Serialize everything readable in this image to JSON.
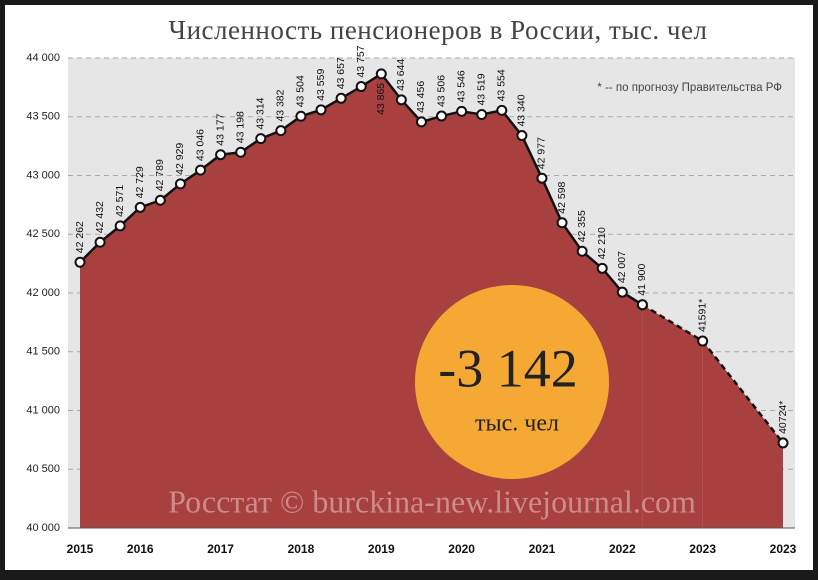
{
  "chart_data": {
    "type": "area-line",
    "title": "Численность пенсионеров в России, тыс. чел",
    "annotation": "* -- по прогнозу Правительства РФ",
    "highlight": {
      "value_label": "-3 142",
      "unit": "тыс. чел"
    },
    "watermark": "Росстат © burckina-new.livejournal.com",
    "categories": [
      "2015",
      null,
      null,
      "2016",
      null,
      null,
      null,
      "2017",
      null,
      null,
      null,
      "2018",
      null,
      null,
      null,
      "2019",
      null,
      null,
      null,
      "2020",
      null,
      null,
      null,
      "2021",
      null,
      null,
      null,
      "2022",
      null,
      null,
      null,
      "2023",
      null,
      null,
      null,
      "2023"
    ],
    "series": [
      {
        "color": "#a8403f",
        "values": [
          42262,
          42432,
          42571,
          42729,
          42789,
          42929,
          43046,
          43177,
          43198,
          43314,
          43382,
          43504,
          43559,
          43657,
          43757,
          43865,
          43644,
          43456,
          43506,
          43546,
          43519,
          43554,
          43340,
          42977,
          42598,
          42355,
          42210,
          42007,
          41900,
          null,
          null,
          null,
          null,
          null,
          null,
          null
        ],
        "value_labels": [
          "42 262",
          "42 432",
          "42 571",
          "42 729",
          "42 789",
          "42 929",
          "43 046",
          "43 177",
          "43 198",
          "43 314",
          "43 382",
          "43 504",
          "43 559",
          "43 657",
          "43 757",
          "43 865",
          "43 644",
          "43 456",
          "43 506",
          "43 546",
          "43 519",
          "43 554",
          "43 340",
          "42 977",
          "42 598",
          "42 355",
          "42 210",
          "42 007",
          "41 900",
          null,
          null,
          null,
          null,
          null,
          null,
          null
        ]
      },
      {
        "color": "#a8403f",
        "dashed": true,
        "values": [
          null,
          null,
          null,
          null,
          null,
          null,
          null,
          null,
          null,
          null,
          null,
          null,
          null,
          null,
          null,
          null,
          null,
          null,
          null,
          null,
          null,
          null,
          null,
          null,
          null,
          null,
          null,
          null,
          41900,
          null,
          null,
          41591,
          null,
          null,
          null,
          40724
        ],
        "value_labels": [
          null,
          null,
          null,
          null,
          null,
          null,
          null,
          null,
          null,
          null,
          null,
          null,
          null,
          null,
          null,
          null,
          null,
          null,
          null,
          null,
          null,
          null,
          null,
          null,
          null,
          null,
          null,
          null,
          null,
          null,
          null,
          "41591*",
          null,
          null,
          null,
          "40724*"
        ]
      }
    ],
    "ylim": [
      40000,
      44000
    ],
    "yticks": [
      {
        "value": 40000,
        "label": "40 000"
      },
      {
        "value": 40500,
        "label": "40 500"
      },
      {
        "value": 41000,
        "label": "41 000"
      },
      {
        "value": 41500,
        "label": "41 500"
      },
      {
        "value": 42000,
        "label": "42 000"
      },
      {
        "value": 42500,
        "label": "42 500"
      },
      {
        "value": 43000,
        "label": "43 000"
      },
      {
        "value": 43500,
        "label": "43 500"
      },
      {
        "value": 44000,
        "label": "44 000"
      }
    ],
    "grid": true
  }
}
